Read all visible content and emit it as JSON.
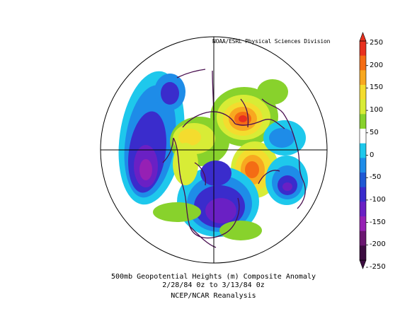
{
  "credit": "NOAA/ESRL Physical Sciences Division",
  "caption": {
    "line1": "500mb Geopotential Heights (m)   Composite Anomaly",
    "line2": "2/28/84 0z  to 3/13/84 0z",
    "line3": "NCEP/NCAR Reanalysis"
  },
  "colorbar": {
    "labels": [
      "250",
      "200",
      "150",
      "100",
      "50",
      "0",
      "-50",
      "-100",
      "-150",
      "-200",
      "-250"
    ],
    "colors": [
      "#e8301e",
      "#f46c14",
      "#f8a820",
      "#f4dc2e",
      "#d8ec36",
      "#88d22c",
      "#ffffff",
      "#1ec8ec",
      "#1e8ce8",
      "#1e58d4",
      "#3a2ccc",
      "#6a20c4",
      "#9620b4",
      "#6a1670",
      "#3c0c40"
    ]
  },
  "map": {
    "projection": "north-polar-stereographic",
    "anomaly_centers": [
      {
        "sign": "negative",
        "level": -200,
        "region": "North Pacific"
      },
      {
        "sign": "negative",
        "level": -150,
        "region": "central/eastern North America"
      },
      {
        "sign": "negative",
        "level": -150,
        "region": "Central Asia"
      },
      {
        "sign": "positive",
        "level": 200,
        "region": "Greenland / North Atlantic"
      },
      {
        "sign": "positive",
        "level": 200,
        "region": "Barents / Kara Sea"
      }
    ]
  }
}
